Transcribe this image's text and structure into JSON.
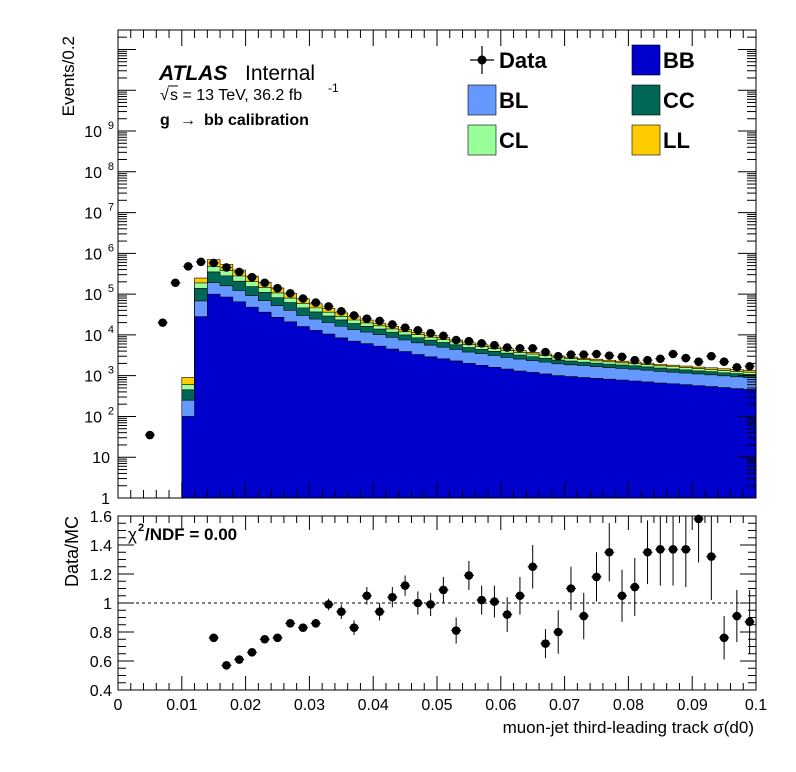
{
  "labels": {
    "atlas": "ATLAS",
    "internal": "Internal",
    "energy_root": "√",
    "energy_text": "s = 13 TeV, 36.2 fb",
    "energy_exp": "-1",
    "channel_g": "g",
    "channel_arrow": "→",
    "channel_rest": "bb calibration",
    "chi2_chi": "χ",
    "chi2_sup": "2",
    "chi2_rest": "/NDF = 0.00"
  },
  "colors": {
    "BB": "#0000cc",
    "BL": "#6699ff",
    "CC": "#006655",
    "CL": "#99ff99",
    "LL": "#ffcc00",
    "data": "#000000"
  },
  "chart_data": [
    {
      "type": "area",
      "subtype": "stacked-step-histogram",
      "ylabel": "Events/0.2",
      "yscale": "log",
      "ylim": [
        1,
        300000000000
      ],
      "xlim": [
        0,
        0.1
      ],
      "yticks": [
        {
          "v": 1,
          "label": "1"
        },
        {
          "v": 10,
          "label": "10"
        },
        {
          "v": 100,
          "label": "10",
          "exp": "2"
        },
        {
          "v": 1000,
          "label": "10",
          "exp": "3"
        },
        {
          "v": 10000,
          "label": "10",
          "exp": "4"
        },
        {
          "v": 100000,
          "label": "10",
          "exp": "5"
        },
        {
          "v": 1000000,
          "label": "10",
          "exp": "6"
        },
        {
          "v": 10000000,
          "label": "10",
          "exp": "7"
        },
        {
          "v": 100000000,
          "label": "10",
          "exp": "8"
        },
        {
          "v": 1000000000,
          "label": "10",
          "exp": "9"
        }
      ],
      "legend": [
        {
          "key": "data",
          "label": "Data",
          "kind": "marker"
        },
        {
          "key": "BB",
          "label": "BB",
          "kind": "box"
        },
        {
          "key": "BL",
          "label": "BL",
          "kind": "box"
        },
        {
          "key": "CC",
          "label": "CC",
          "kind": "box"
        },
        {
          "key": "CL",
          "label": "CL",
          "kind": "box"
        },
        {
          "key": "LL",
          "label": "LL",
          "kind": "box"
        }
      ],
      "legend_position": "top-right",
      "bin_width": 0.002,
      "x_centers": [
        0.011,
        0.013,
        0.015,
        0.017,
        0.019,
        0.021,
        0.023,
        0.025,
        0.027,
        0.029,
        0.031,
        0.033,
        0.035,
        0.037,
        0.039,
        0.041,
        0.043,
        0.045,
        0.047,
        0.049,
        0.051,
        0.053,
        0.055,
        0.057,
        0.059,
        0.061,
        0.063,
        0.065,
        0.067,
        0.069,
        0.071,
        0.073,
        0.075,
        0.077,
        0.079,
        0.081,
        0.083,
        0.085,
        0.087,
        0.089,
        0.091,
        0.093,
        0.095,
        0.097,
        0.099
      ],
      "series": [
        {
          "name": "BB",
          "values": [
            100,
            28000,
            100000,
            85000,
            65000,
            48000,
            36000,
            27000,
            21000,
            16000,
            13000,
            10500,
            8500,
            7000,
            6100,
            5300,
            4500,
            3900,
            3300,
            2900,
            2600,
            2300,
            2000,
            1800,
            1600,
            1450,
            1300,
            1200,
            1100,
            1000,
            950,
            900,
            860,
            820,
            780,
            740,
            700,
            660,
            630,
            600,
            570,
            540,
            510,
            480,
            460
          ]
        },
        {
          "name": "BL",
          "values": [
            150,
            40000,
            90000,
            75000,
            58000,
            44000,
            33000,
            25000,
            19000,
            14000,
            11500,
            9500,
            7800,
            6500,
            5600,
            4900,
            4200,
            3600,
            3100,
            2700,
            2400,
            2100,
            1800,
            1650,
            1500,
            1350,
            1250,
            1150,
            1050,
            950,
            900,
            850,
            800,
            760,
            720,
            700,
            660,
            620,
            590,
            560,
            530,
            510,
            480,
            460,
            440
          ]
        },
        {
          "name": "CC",
          "values": [
            200,
            70000,
            160000,
            120000,
            85000,
            60000,
            42000,
            30000,
            22000,
            16000,
            12000,
            9000,
            7000,
            5500,
            4500,
            3700,
            3000,
            2500,
            2100,
            1800,
            1500,
            1300,
            1100,
            950,
            850,
            750,
            650,
            580,
            520,
            470,
            430,
            400,
            370,
            340,
            320,
            300,
            280,
            260,
            240,
            225,
            210,
            200,
            190,
            180,
            170
          ]
        },
        {
          "name": "CL",
          "values": [
            150,
            50000,
            130000,
            100000,
            70000,
            50000,
            35000,
            25000,
            18000,
            13000,
            9500,
            7000,
            5300,
            4200,
            3400,
            2800,
            2300,
            1900,
            1600,
            1350,
            1150,
            1000,
            850,
            750,
            650,
            580,
            520,
            460,
            410,
            370,
            330,
            310,
            290,
            270,
            250,
            235,
            220,
            205,
            195,
            185,
            175,
            165,
            155,
            150,
            145
          ]
        },
        {
          "name": "LL",
          "values": [
            300,
            60000,
            220000,
            160000,
            110000,
            75000,
            50000,
            35000,
            25000,
            17000,
            12000,
            8500,
            6000,
            4500,
            3500,
            2700,
            2100,
            1700,
            1400,
            1100,
            900,
            750,
            650,
            550,
            480,
            420,
            370,
            330,
            300,
            270,
            250,
            230,
            210,
            200,
            190,
            180,
            170,
            160,
            155,
            150,
            145,
            140,
            135,
            130,
            125
          ]
        }
      ],
      "data_points": {
        "x": [
          0.005,
          0.007,
          0.009,
          0.011,
          0.013,
          0.015,
          0.017,
          0.019,
          0.021,
          0.023,
          0.025,
          0.027,
          0.029,
          0.031,
          0.033,
          0.035,
          0.037,
          0.039,
          0.041,
          0.043,
          0.045,
          0.047,
          0.049,
          0.051,
          0.053,
          0.055,
          0.057,
          0.059,
          0.061,
          0.063,
          0.065,
          0.067,
          0.069,
          0.071,
          0.073,
          0.075,
          0.077,
          0.079,
          0.081,
          0.083,
          0.085,
          0.087,
          0.089,
          0.091,
          0.093,
          0.095,
          0.097,
          0.099
        ],
        "y": [
          35,
          20000,
          190000,
          480000,
          620000,
          580000,
          450000,
          350000,
          260000,
          190000,
          140000,
          105000,
          78000,
          62000,
          50000,
          38000,
          30000,
          25000,
          22000,
          18000,
          15000,
          13000,
          11000,
          9500,
          7500,
          7000,
          6200,
          5600,
          4900,
          4700,
          4700,
          3800,
          3000,
          3300,
          3300,
          3400,
          3100,
          2900,
          2400,
          2400,
          2600,
          3400,
          2700,
          2200,
          3000,
          2200,
          1600,
          1700
        ]
      }
    },
    {
      "type": "scatter",
      "subtype": "ratio-with-error-bars",
      "ylabel": "Data/MC",
      "xlabel": "muon-jet third-leading track σ(d0)",
      "ylim": [
        0.4,
        1.6
      ],
      "xlim": [
        0,
        0.1
      ],
      "reference_line": 1.0,
      "xticks": [
        {
          "v": 0,
          "label": "0"
        },
        {
          "v": 0.01,
          "label": "0.01"
        },
        {
          "v": 0.02,
          "label": "0.02"
        },
        {
          "v": 0.03,
          "label": "0.03"
        },
        {
          "v": 0.04,
          "label": "0.04"
        },
        {
          "v": 0.05,
          "label": "0.05"
        },
        {
          "v": 0.06,
          "label": "0.06"
        },
        {
          "v": 0.07,
          "label": "0.07"
        },
        {
          "v": 0.08,
          "label": "0.08"
        },
        {
          "v": 0.09,
          "label": "0.09"
        },
        {
          "v": 0.1,
          "label": "0.1"
        }
      ],
      "yticks": [
        {
          "v": 0.4,
          "label": "0.4"
        },
        {
          "v": 0.6,
          "label": "0.6"
        },
        {
          "v": 0.8,
          "label": "0.8"
        },
        {
          "v": 1.0,
          "label": "1"
        },
        {
          "v": 1.2,
          "label": "1.2"
        },
        {
          "v": 1.4,
          "label": "1.4"
        },
        {
          "v": 1.6,
          "label": "1.6"
        }
      ],
      "x": [
        0.015,
        0.017,
        0.019,
        0.021,
        0.023,
        0.025,
        0.027,
        0.029,
        0.031,
        0.033,
        0.035,
        0.037,
        0.039,
        0.041,
        0.043,
        0.045,
        0.047,
        0.049,
        0.051,
        0.053,
        0.055,
        0.057,
        0.059,
        0.061,
        0.063,
        0.065,
        0.067,
        0.069,
        0.071,
        0.073,
        0.075,
        0.077,
        0.079,
        0.081,
        0.083,
        0.085,
        0.087,
        0.089,
        0.091,
        0.093,
        0.095,
        0.097,
        0.099
      ],
      "y": [
        0.76,
        0.57,
        0.61,
        0.66,
        0.75,
        0.76,
        0.86,
        0.83,
        0.86,
        0.99,
        0.94,
        0.83,
        1.05,
        0.94,
        1.04,
        1.12,
        1.0,
        0.99,
        1.09,
        0.81,
        1.19,
        1.02,
        1.01,
        0.92,
        1.05,
        1.25,
        0.72,
        0.8,
        1.1,
        0.91,
        1.18,
        1.35,
        1.05,
        1.11,
        1.35,
        1.37,
        1.37,
        1.37,
        1.58,
        1.32,
        0.76,
        0.91,
        0.87
      ],
      "err": [
        0.01,
        0.01,
        0.01,
        0.01,
        0.01,
        0.01,
        0.02,
        0.02,
        0.03,
        0.04,
        0.05,
        0.05,
        0.06,
        0.06,
        0.07,
        0.07,
        0.08,
        0.08,
        0.09,
        0.09,
        0.1,
        0.1,
        0.11,
        0.12,
        0.13,
        0.15,
        0.1,
        0.15,
        0.15,
        0.16,
        0.17,
        0.2,
        0.18,
        0.2,
        0.22,
        0.25,
        0.25,
        0.26,
        0.3,
        0.3,
        0.15,
        0.18,
        0.22
      ]
    }
  ]
}
